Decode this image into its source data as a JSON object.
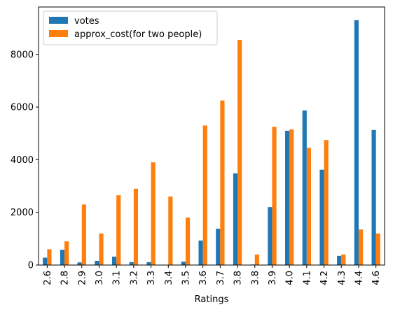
{
  "chart_data": {
    "type": "bar",
    "xlabel": "Ratings",
    "ylabel": "",
    "ylim": [
      0,
      9800
    ],
    "yticks": [
      0,
      2000,
      4000,
      6000,
      8000
    ],
    "categories": [
      "2.6",
      "2.8",
      "2.9",
      "3.0",
      "3.1",
      "3.2",
      "3.3",
      "3.4",
      "3.5",
      "3.6",
      "3.7",
      "3.8",
      "3.8",
      "3.9",
      "4.0",
      "4.1",
      "4.2",
      "4.3",
      "4.4",
      "4.6"
    ],
    "series": [
      {
        "name": "votes",
        "color": "#1f77b4",
        "values": [
          280,
          580,
          100,
          160,
          320,
          110,
          110,
          0,
          130,
          930,
          1380,
          3480,
          20,
          2200,
          5100,
          5870,
          3620,
          350,
          9300,
          5130
        ]
      },
      {
        "name": "approx_cost(for two people)",
        "color": "#ff7f0e",
        "values": [
          600,
          900,
          2300,
          1200,
          2650,
          2900,
          3900,
          2600,
          1800,
          5300,
          6250,
          8550,
          400,
          5250,
          5150,
          4450,
          4750,
          400,
          1350,
          1200
        ]
      }
    ],
    "legend": {
      "placement": "top-left"
    },
    "grid": false
  }
}
